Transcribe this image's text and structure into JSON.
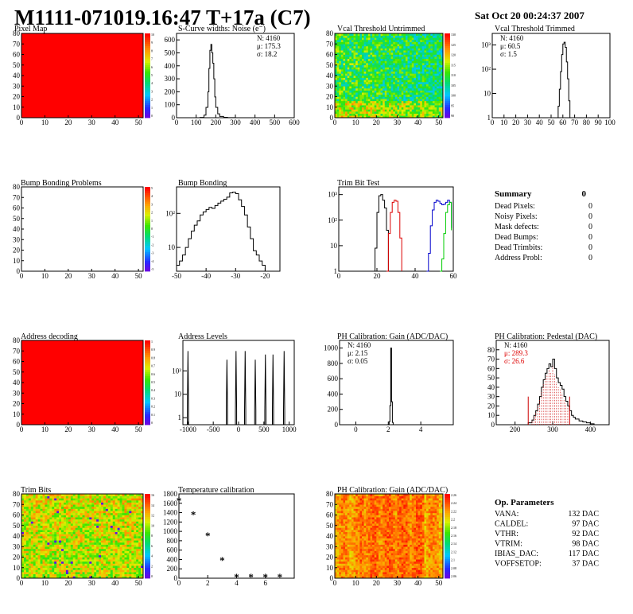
{
  "header": {
    "title": "M1111-071019.16:47 T+17a (C7)",
    "date": "Sat Oct 20 00:24:37 2007"
  },
  "colors": {
    "red": "#ff0000",
    "frame": "#000000",
    "hist_red": "#dd0000",
    "hist_blue": "#0000cc",
    "hist_green": "#00cc00",
    "stat_red": "#dd0000"
  },
  "summary": {
    "title": "Summary",
    "total": "0",
    "rows": [
      {
        "label": "Dead Pixels:",
        "value": "0"
      },
      {
        "label": "Noisy Pixels:",
        "value": "0"
      },
      {
        "label": "Mask defects:",
        "value": "0"
      },
      {
        "label": "Dead Bumps:",
        "value": "0"
      },
      {
        "label": "Dead Trimbits:",
        "value": "0"
      },
      {
        "label": "Address Probl:",
        "value": "0"
      }
    ]
  },
  "op_params": {
    "title": "Op. Parameters",
    "rows": [
      {
        "label": "VANA:",
        "value": "132 DAC"
      },
      {
        "label": "CALDEL:",
        "value": "97 DAC"
      },
      {
        "label": "VTHR:",
        "value": "92 DAC"
      },
      {
        "label": "VTRIM:",
        "value": "98 DAC"
      },
      {
        "label": "IBIAS_DAC:",
        "value": "117 DAC"
      },
      {
        "label": "VOFFSETOP:",
        "value": "37 DAC"
      }
    ]
  },
  "chart_data": [
    {
      "id": "pixel-map",
      "type": "heatmap",
      "title": "Pixel Map",
      "style": "solid-red",
      "xlim": [
        0,
        52
      ],
      "ylim": [
        0,
        80
      ],
      "xticks": [
        0,
        10,
        20,
        30,
        40,
        50
      ],
      "yticks": [
        0,
        10,
        20,
        30,
        40,
        50,
        60,
        70,
        80
      ],
      "zticks": [
        "10",
        "9",
        "8",
        "7",
        "6",
        "5",
        "4",
        "3",
        "2",
        "1",
        "0"
      ],
      "palette": "rainbow"
    },
    {
      "id": "scurve-noise",
      "type": "line",
      "title": "S-Curve widths: Noise (e⁻)",
      "scale": "linear",
      "xlim": [
        0,
        600
      ],
      "ylim": [
        0,
        650
      ],
      "xticks": [
        0,
        100,
        200,
        300,
        400,
        500,
        600
      ],
      "yticks": [
        0,
        100,
        200,
        300,
        400,
        500,
        600
      ],
      "stats": [
        "N: 4160",
        "μ: 175.3",
        "σ: 18.2"
      ],
      "series": [
        {
          "color": "#000000",
          "x": [
            100,
            120,
            140,
            150,
            160,
            165,
            170,
            175,
            180,
            185,
            190,
            195,
            200,
            210,
            220,
            240,
            260,
            300
          ],
          "y": [
            0,
            2,
            20,
            80,
            200,
            380,
            520,
            565,
            500,
            420,
            300,
            160,
            80,
            30,
            10,
            3,
            1,
            0
          ]
        }
      ]
    },
    {
      "id": "vcal-untrimmed",
      "type": "heatmap",
      "title": "Vcal Threshold Untrimmed",
      "style": "noisy-cool",
      "xlim": [
        0,
        52
      ],
      "ylim": [
        0,
        80
      ],
      "xticks": [
        0,
        10,
        20,
        30,
        40,
        50
      ],
      "yticks": [
        0,
        10,
        20,
        30,
        40,
        50,
        60,
        70,
        80
      ],
      "zticks": [
        "130",
        "125",
        "120",
        "115",
        "110",
        "105",
        "100",
        "95",
        "90"
      ],
      "palette": "rainbow"
    },
    {
      "id": "vcal-trimmed",
      "type": "line",
      "title": "Vcal Threshold Trimmed",
      "scale": "log",
      "xlim": [
        0,
        100
      ],
      "ylim": [
        1,
        3000
      ],
      "xticks": [
        0,
        10,
        20,
        30,
        40,
        50,
        60,
        70,
        80,
        90,
        100
      ],
      "ytick_labels": [
        {
          "v": 1,
          "t": "1"
        },
        {
          "v": 10,
          "t": "10"
        },
        {
          "v": 100,
          "t": "10²"
        },
        {
          "v": 1000,
          "t": "10³"
        }
      ],
      "stats": [
        "N: 4160",
        "μ: 60.5",
        "σ:  1.5"
      ],
      "series": [
        {
          "color": "#000000",
          "x": [
            55,
            56,
            57,
            58,
            59,
            60,
            61,
            62,
            63,
            64,
            65,
            66
          ],
          "y": [
            1,
            3,
            15,
            80,
            400,
            1100,
            1300,
            800,
            200,
            40,
            5,
            1
          ]
        }
      ]
    },
    {
      "id": "bump-problems",
      "type": "heatmap",
      "title": "Bump Bonding Problems",
      "style": "empty",
      "xlim": [
        0,
        52
      ],
      "ylim": [
        0,
        80
      ],
      "xticks": [
        0,
        10,
        20,
        30,
        40,
        50
      ],
      "yticks": [
        0,
        10,
        20,
        30,
        40,
        50,
        60,
        70,
        80
      ],
      "zticks": [
        "5",
        "4",
        "3",
        "2",
        "1",
        "0",
        "-1",
        "-2",
        "-3",
        "-4",
        "-5"
      ],
      "palette": "rainbow"
    },
    {
      "id": "bump-bonding",
      "type": "line",
      "title": "Bump Bonding",
      "scale": "log",
      "xlim": [
        -50,
        -15
      ],
      "ylim": [
        2,
        600
      ],
      "xticks": [
        -50,
        -40,
        -30,
        -20
      ],
      "ytick_labels": [
        {
          "v": 10,
          "t": "10"
        },
        {
          "v": 100,
          "t": "10²"
        }
      ],
      "series": [
        {
          "color": "#000000",
          "x": [
            -50,
            -49,
            -48,
            -47,
            -46,
            -45,
            -44,
            -43,
            -42,
            -41,
            -40,
            -39,
            -38,
            -37,
            -36,
            -35,
            -34,
            -33,
            -32,
            -31,
            -30,
            -29,
            -28,
            -27,
            -26,
            -25,
            -24,
            -23,
            -22,
            -21,
            -20,
            -19
          ],
          "y": [
            3,
            4,
            6,
            10,
            18,
            30,
            45,
            60,
            90,
            110,
            130,
            150,
            140,
            170,
            200,
            230,
            260,
            300,
            400,
            420,
            380,
            250,
            160,
            90,
            40,
            18,
            8,
            6,
            4,
            3,
            2,
            2
          ]
        }
      ]
    },
    {
      "id": "trim-bit-test",
      "type": "line",
      "title": "Trim Bit Test",
      "scale": "log",
      "xlim": [
        0,
        60
      ],
      "ylim": [
        1,
        2000
      ],
      "xticks": [
        0,
        20,
        40,
        60
      ],
      "ytick_labels": [
        {
          "v": 1,
          "t": "1"
        },
        {
          "v": 10,
          "t": "10"
        },
        {
          "v": 100,
          "t": "10²"
        },
        {
          "v": 1000,
          "t": "10³"
        }
      ],
      "series": [
        {
          "color": "#000000",
          "x": [
            18,
            19,
            20,
            21,
            22,
            23,
            24,
            25,
            26
          ],
          "y": [
            1,
            8,
            200,
            900,
            1000,
            600,
            300,
            40,
            1
          ]
        },
        {
          "color": "#dd0000",
          "x": [
            25,
            26,
            27,
            28,
            29,
            30,
            31,
            32,
            33
          ],
          "y": [
            1,
            30,
            200,
            500,
            600,
            550,
            200,
            20,
            1
          ]
        },
        {
          "color": "#0000cc",
          "x": [
            46,
            47,
            48,
            49,
            50,
            51,
            52,
            53,
            54,
            55,
            56,
            57,
            58,
            59
          ],
          "y": [
            1,
            5,
            60,
            250,
            500,
            600,
            550,
            450,
            400,
            420,
            500,
            600,
            500,
            50
          ]
        },
        {
          "color": "#00cc00",
          "x": [
            53,
            54,
            55,
            56,
            57,
            58,
            59
          ],
          "y": [
            1,
            3,
            30,
            200,
            400,
            500,
            40
          ]
        }
      ]
    },
    {
      "id": "address-decoding",
      "type": "heatmap",
      "title": "Address decoding",
      "style": "solid-red",
      "xlim": [
        0,
        52
      ],
      "ylim": [
        0,
        80
      ],
      "xticks": [
        0,
        10,
        20,
        30,
        40,
        50
      ],
      "yticks": [
        0,
        10,
        20,
        30,
        40,
        50,
        60,
        70,
        80
      ],
      "zticks": [
        "1",
        "0.9",
        "0.8",
        "0.7",
        "0.6",
        "0.5",
        "0.4",
        "0.3",
        "0.2",
        "0.1",
        "0"
      ],
      "palette": "rainbow"
    },
    {
      "id": "address-levels",
      "type": "line",
      "title": "Address Levels",
      "scale": "log",
      "xlim": [
        -1100,
        1100
      ],
      "ylim": [
        0.5,
        2000
      ],
      "xticks": [
        -1000,
        -500,
        0,
        500,
        1000
      ],
      "ytick_labels": [
        {
          "v": 1,
          "t": "1"
        },
        {
          "v": 10,
          "t": "10"
        },
        {
          "v": 100,
          "t": "10²"
        }
      ],
      "series": [
        {
          "color": "#000000",
          "peaks": [
            -1000,
            -230,
            -50,
            130,
            330,
            530,
            680,
            900
          ],
          "peak_heights": [
            700,
            300,
            700,
            700,
            300,
            500,
            500,
            700
          ]
        }
      ]
    },
    {
      "id": "ph-gain",
      "type": "line",
      "title": "PH Calibration: Gain (ADC/DAC)",
      "scale": "linear",
      "xlim": [
        -1,
        6
      ],
      "ylim": [
        0,
        1100
      ],
      "xticks": [
        0,
        2,
        4
      ],
      "yticks": [
        0,
        200,
        400,
        600,
        800,
        1000
      ],
      "stats": [
        "N: 4160",
        "μ: 2.15",
        "σ: 0.05"
      ],
      "series": [
        {
          "color": "#000000",
          "x": [
            1.95,
            2.0,
            2.05,
            2.1,
            2.15,
            2.2,
            2.25,
            2.3
          ],
          "y": [
            0,
            5,
            40,
            250,
            1000,
            300,
            30,
            0
          ]
        }
      ]
    },
    {
      "id": "ph-pedestal",
      "type": "line",
      "title": "PH Calibration: Pedestal (DAC)",
      "scale": "linear",
      "xlim": [
        150,
        450
      ],
      "ylim": [
        0,
        90
      ],
      "xticks": [
        200,
        300,
        400
      ],
      "yticks": [
        0,
        10,
        20,
        30,
        40,
        50,
        60,
        70,
        80
      ],
      "stats": [
        "N: 4160",
        "μ: 289.3",
        "σ: 26.6"
      ],
      "stats_colors": [
        "#000000",
        "#dd0000",
        "#dd0000"
      ],
      "fit_lines": [
        235,
        345
      ],
      "series": [
        {
          "color": "#000000",
          "x": [
            225,
            235,
            245,
            250,
            255,
            260,
            265,
            270,
            275,
            280,
            285,
            290,
            295,
            300,
            305,
            310,
            315,
            320,
            325,
            330,
            335,
            340,
            345,
            350,
            355,
            360,
            370,
            380,
            390,
            400,
            410
          ],
          "y": [
            0,
            2,
            5,
            10,
            15,
            22,
            30,
            40,
            48,
            55,
            60,
            65,
            62,
            70,
            60,
            50,
            45,
            42,
            38,
            30,
            25,
            20,
            15,
            10,
            8,
            6,
            4,
            3,
            2,
            1,
            0
          ]
        }
      ]
    },
    {
      "id": "trim-bits",
      "type": "heatmap",
      "title": "Trim Bits",
      "style": "noisy-warm",
      "xlim": [
        0,
        52
      ],
      "ylim": [
        0,
        80
      ],
      "xticks": [
        0,
        10,
        20,
        30,
        40,
        50
      ],
      "yticks": [
        0,
        10,
        20,
        30,
        40,
        50,
        60,
        70,
        80
      ],
      "zticks": [
        "16",
        "14",
        "12",
        "10",
        "8",
        "6",
        "4",
        "2",
        "0"
      ],
      "palette": "rainbow"
    },
    {
      "id": "temperature-calibration",
      "type": "scatter",
      "title": "Temperature calibration",
      "scale": "linear",
      "xlim": [
        0,
        8
      ],
      "ylim": [
        0,
        1800
      ],
      "xticks": [
        0,
        2,
        4,
        6
      ],
      "yticks": [
        0,
        200,
        400,
        600,
        800,
        1000,
        1200,
        1400,
        1600,
        1800
      ],
      "series": [
        {
          "color": "#000000",
          "x": [
            0,
            1,
            2,
            3,
            4,
            5,
            6,
            7
          ],
          "y": [
            1650,
            1350,
            900,
            370,
            20,
            20,
            20,
            20
          ]
        }
      ]
    },
    {
      "id": "ph-gain-map",
      "type": "heatmap",
      "title": "PH Calibration: Gain (ADC/DAC)",
      "style": "noisy-hot",
      "xlim": [
        0,
        52
      ],
      "ylim": [
        0,
        80
      ],
      "xticks": [
        0,
        10,
        20,
        30,
        40,
        50
      ],
      "yticks": [
        0,
        10,
        20,
        30,
        40,
        50,
        60,
        70,
        80
      ],
      "zticks": [
        "2.26",
        "2.24",
        "2.22",
        "2.2",
        "2.18",
        "2.16",
        "2.14",
        "2.12",
        "2.1",
        "2.08",
        "2.06"
      ],
      "palette": "rainbow"
    }
  ]
}
